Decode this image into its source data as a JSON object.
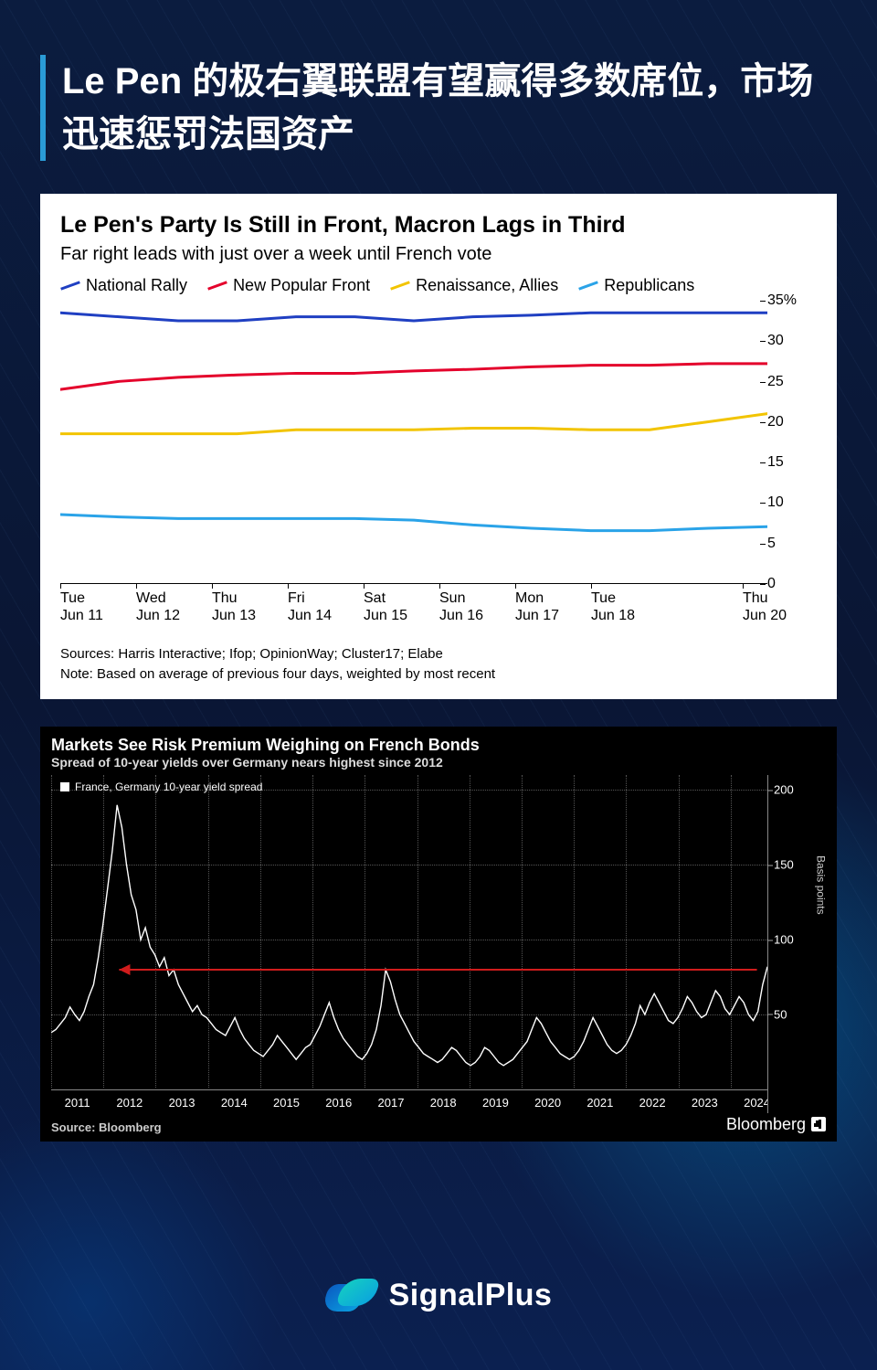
{
  "title": "Le Pen 的极右翼联盟有望赢得多数席位，市场迅速惩罚法国资产",
  "title_border_color": "#2a9bd6",
  "background": {
    "base_gradient": [
      "#0b1c3f",
      "#0a1634",
      "#0b2050"
    ],
    "glow1": "rgba(0,180,255,0.3)",
    "glow2": "rgba(0,100,200,0.25)"
  },
  "chart1": {
    "type": "line",
    "title": "Le Pen's Party Is Still in Front, Macron Lags in Third",
    "subtitle": "Far right leads with just over a week until French vote",
    "background_color": "#ffffff",
    "title_fontsize": 25,
    "subtitle_fontsize": 20,
    "ylim": [
      0,
      35
    ],
    "ytick_step": 5,
    "y_suffix_first": "%",
    "x_labels": [
      "Tue\nJun 11",
      "Wed\nJun 12",
      "Thu\nJun 13",
      "Fri\nJun 14",
      "Sat\nJun 15",
      "Sun\nJun 16",
      "Mon\nJun 17",
      "Tue\nJun 18",
      "Thu\nJun 20"
    ],
    "series": [
      {
        "name": "National Rally",
        "color": "#1f3fc2",
        "values": [
          33.5,
          33,
          32.5,
          32.5,
          33,
          33,
          32.5,
          33,
          33.2,
          33.5,
          33.5,
          33.5,
          33.5
        ]
      },
      {
        "name": "New Popular Front",
        "color": "#e4002b",
        "values": [
          24,
          25,
          25.5,
          25.8,
          26,
          26,
          26.3,
          26.5,
          26.8,
          27,
          27,
          27.2,
          27.2
        ]
      },
      {
        "name": "Renaissance, Allies",
        "color": "#f2c400",
        "values": [
          18.5,
          18.5,
          18.5,
          18.5,
          19,
          19,
          19,
          19.2,
          19.2,
          19,
          19,
          20,
          21
        ]
      },
      {
        "name": "Republicans",
        "color": "#2aa3e8",
        "values": [
          8.5,
          8.2,
          8,
          8,
          8,
          8,
          7.8,
          7.2,
          6.8,
          6.5,
          6.5,
          6.8,
          7
        ]
      }
    ],
    "line_width": 3,
    "sources": "Sources: Harris Interactive; Ifop; OpinionWay; Cluster17; Elabe",
    "note": "Note: Based on average of previous four days, weighted by most recent"
  },
  "chart2": {
    "type": "line",
    "title": "Markets See Risk Premium Weighing on French Bonds",
    "subtitle": "Spread of 10-year yields over Germany nears highest since 2012",
    "legend_label": "France, Germany 10-year yield spread",
    "background_color": "#000000",
    "line_color": "#ffffff",
    "line_width": 1.4,
    "grid_color": "#555555",
    "axis_color": "#888888",
    "ylim": [
      0,
      210
    ],
    "yticks": [
      50,
      100,
      150,
      200
    ],
    "ylabel": "Basis points",
    "x_start_year": 2011,
    "x_end_year": 2024.7,
    "x_labels": [
      "2011",
      "2012",
      "2013",
      "2014",
      "2015",
      "2016",
      "2017",
      "2018",
      "2019",
      "2020",
      "2021",
      "2022",
      "2023",
      "2024"
    ],
    "annotation_arrow": {
      "color": "#d01c1c",
      "y": 80,
      "x_from": 2024.5,
      "x_to": 2012.3
    },
    "values": [
      38,
      40,
      44,
      48,
      55,
      50,
      46,
      52,
      62,
      70,
      88,
      110,
      135,
      160,
      190,
      175,
      150,
      130,
      120,
      100,
      108,
      95,
      90,
      82,
      88,
      76,
      80,
      70,
      64,
      58,
      52,
      56,
      50,
      48,
      44,
      40,
      38,
      36,
      42,
      48,
      40,
      34,
      30,
      26,
      24,
      22,
      26,
      30,
      36,
      32,
      28,
      24,
      20,
      24,
      28,
      30,
      36,
      42,
      50,
      58,
      48,
      40,
      34,
      30,
      26,
      22,
      20,
      24,
      30,
      40,
      56,
      80,
      72,
      60,
      50,
      44,
      38,
      32,
      28,
      24,
      22,
      20,
      18,
      20,
      24,
      28,
      26,
      22,
      18,
      16,
      18,
      22,
      28,
      26,
      22,
      18,
      16,
      18,
      20,
      24,
      28,
      32,
      40,
      48,
      44,
      38,
      32,
      28,
      24,
      22,
      20,
      22,
      26,
      32,
      40,
      48,
      42,
      36,
      30,
      26,
      24,
      26,
      30,
      36,
      44,
      56,
      50,
      58,
      64,
      58,
      52,
      46,
      44,
      48,
      54,
      62,
      58,
      52,
      48,
      50,
      58,
      66,
      62,
      54,
      50,
      56,
      62,
      58,
      50,
      46,
      52,
      70,
      82
    ],
    "source": "Source:  Bloomberg",
    "brand": "Bloomberg"
  },
  "footer_brand": "SignalPlus"
}
